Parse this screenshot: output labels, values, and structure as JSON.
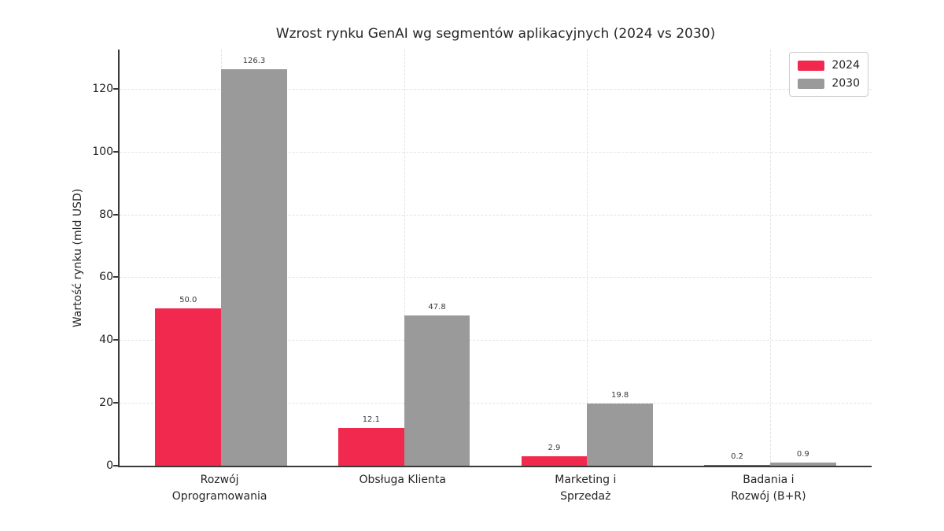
{
  "chart_data": {
    "type": "bar",
    "title": "Wzrost rynku GenAI wg segmentów aplikacyjnych (2024 vs 2030)",
    "ylabel": "Wartość rynku (mld USD)",
    "xlabel": "",
    "categories": [
      "Rozwój\nOprogramowania",
      "Obsługa Klienta",
      "Marketing i\nSprzedaż",
      "Badania i\nRozwój (B+R)"
    ],
    "series": [
      {
        "name": "2024",
        "color": "#f2294e",
        "values": [
          50.0,
          12.1,
          2.9,
          0.2
        ]
      },
      {
        "name": "2030",
        "color": "#9a9a9a",
        "values": [
          126.3,
          47.8,
          19.8,
          0.9
        ]
      }
    ],
    "yticks": [
      0,
      20,
      40,
      60,
      80,
      100,
      120
    ],
    "ylim": [
      0,
      132.5
    ],
    "grid": true,
    "grid_style": "dashed",
    "legend_position": "upper right",
    "value_label_decimals": 1
  },
  "colors": {
    "series_2024": "#f2294e",
    "series_2030": "#9a9a9a",
    "grid": "#e3e3e3",
    "spine": "#3a3a3a",
    "text": "#262626",
    "value_label": "#3a3a3a",
    "legend_border": "#cccccc",
    "background": "#ffffff"
  }
}
